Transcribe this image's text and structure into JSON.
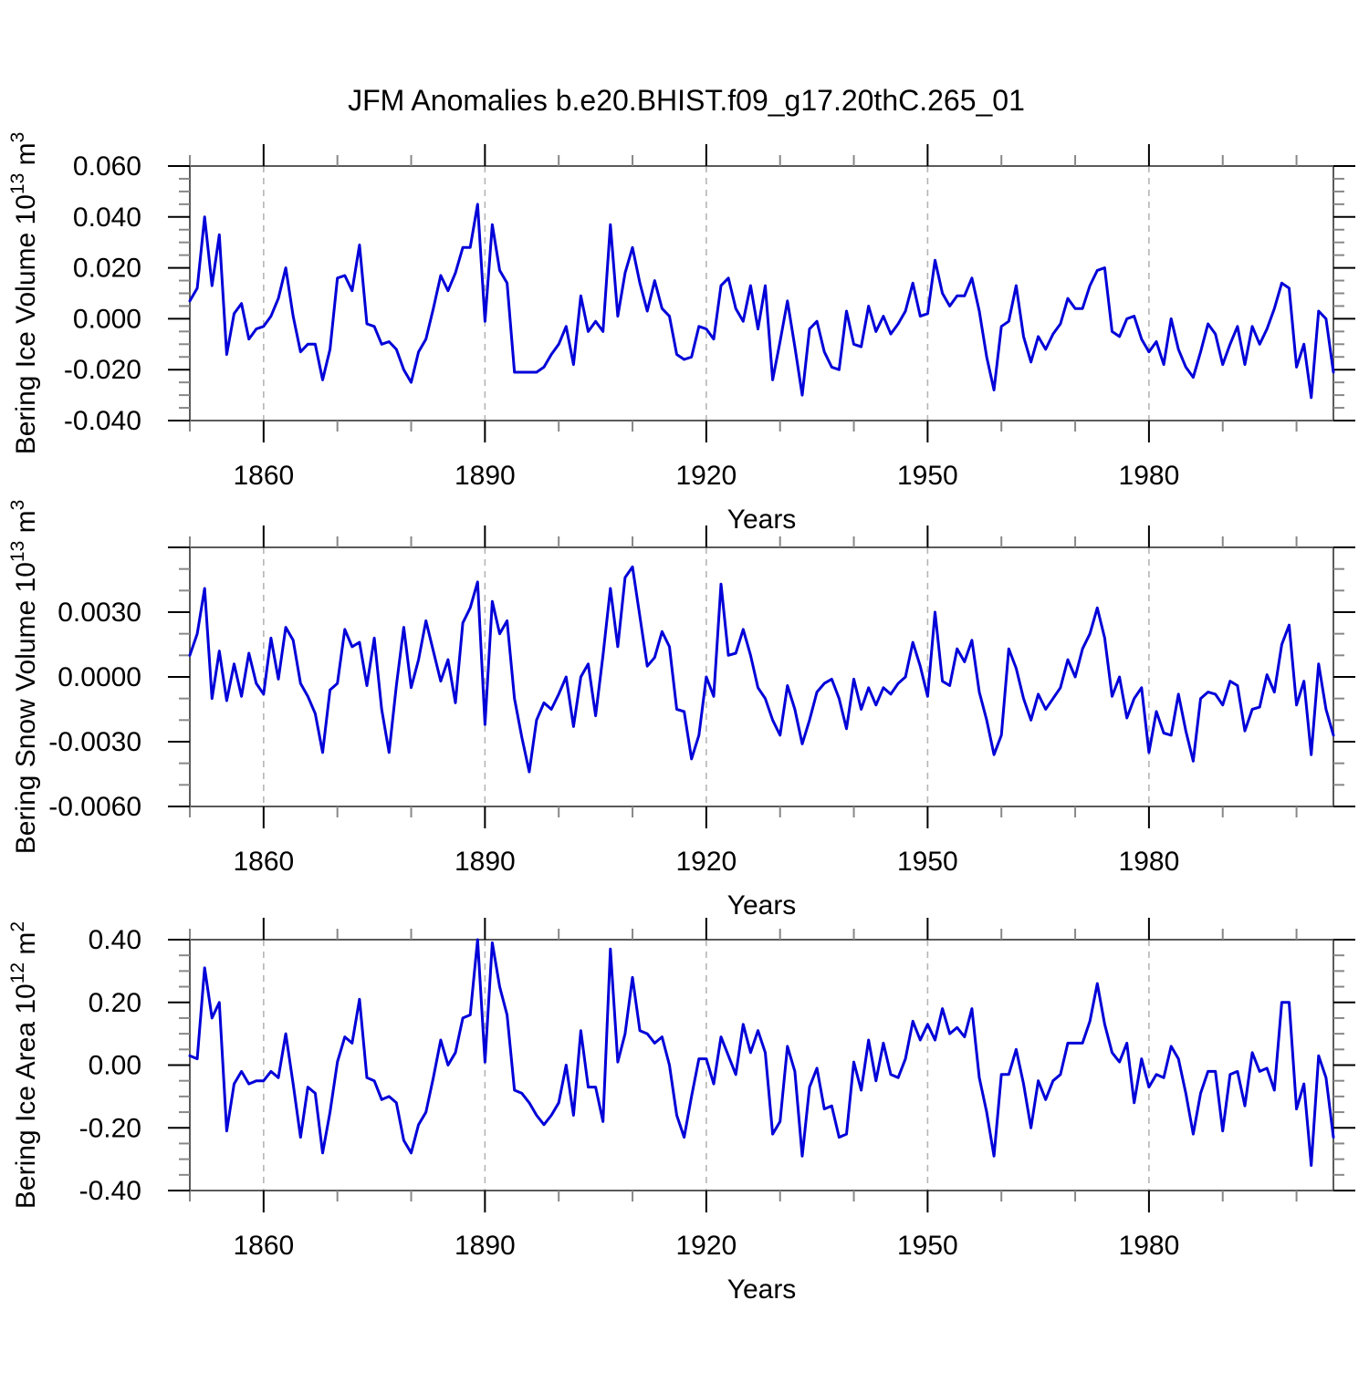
{
  "title": "JFM Anomalies b.e20.BHIST.f09_g17.20thC.265_01",
  "colors": {
    "line": "#0000d8",
    "frame": "#5a5a5a",
    "major_tick": "#000000",
    "minor_tick": "#888888",
    "gridline": "#b5b5b5",
    "text": "#000000"
  },
  "x_axis": {
    "label": "Years",
    "range": [
      1850,
      2005
    ],
    "labeled_ticks": [
      1860,
      1890,
      1920,
      1950,
      1980
    ],
    "minor_step": 10,
    "gridlines": [
      1860,
      1890,
      1920,
      1950,
      1980
    ]
  },
  "years": {
    "start": 1850,
    "end": 2005,
    "step": 1
  },
  "chart_data": [
    {
      "type": "line",
      "name": "bering-ice-volume",
      "ylabel_parts": [
        {
          "t": "Bering Ice Volume 10"
        },
        {
          "t": "13",
          "sup": 1
        },
        {
          "t": " m"
        },
        {
          "t": "3",
          "sup": 1
        }
      ],
      "xlabel": "Years",
      "ylim": [
        -0.04,
        0.06
      ],
      "yminor_step": 0.005,
      "yticks": [
        {
          "value": 0.06,
          "label": "0.060"
        },
        {
          "value": 0.04,
          "label": "0.040"
        },
        {
          "value": 0.02,
          "label": "0.020"
        },
        {
          "value": 0.0,
          "label": "0.000"
        },
        {
          "value": -0.02,
          "label": "-0.020"
        },
        {
          "value": -0.04,
          "label": "-0.040"
        }
      ],
      "values": [
        0.007,
        0.012,
        0.04,
        0.013,
        0.033,
        -0.014,
        0.002,
        0.006,
        -0.008,
        -0.004,
        -0.003,
        0.001,
        0.008,
        0.02,
        0.001,
        -0.013,
        -0.01,
        -0.01,
        -0.024,
        -0.012,
        0.016,
        0.017,
        0.011,
        0.029,
        -0.002,
        -0.003,
        -0.01,
        -0.009,
        -0.012,
        -0.02,
        -0.025,
        -0.013,
        -0.008,
        0.004,
        0.017,
        0.011,
        0.018,
        0.028,
        0.028,
        0.045,
        -0.001,
        0.037,
        0.019,
        0.014,
        -0.021,
        -0.021,
        -0.021,
        -0.021,
        -0.019,
        -0.014,
        -0.01,
        -0.003,
        -0.018,
        0.009,
        -0.005,
        -0.001,
        -0.005,
        0.037,
        0.001,
        0.018,
        0.028,
        0.014,
        0.003,
        0.015,
        0.004,
        0.001,
        -0.014,
        -0.016,
        -0.015,
        -0.003,
        -0.004,
        -0.008,
        0.013,
        0.016,
        0.004,
        -0.001,
        0.013,
        -0.004,
        0.013,
        -0.024,
        -0.009,
        0.007,
        -0.011,
        -0.03,
        -0.004,
        -0.001,
        -0.013,
        -0.019,
        -0.02,
        0.003,
        -0.01,
        -0.011,
        0.005,
        -0.005,
        0.001,
        -0.006,
        -0.002,
        0.003,
        0.014,
        0.001,
        0.002,
        0.023,
        0.01,
        0.005,
        0.009,
        0.009,
        0.016,
        0.003,
        -0.015,
        -0.028,
        -0.003,
        -0.001,
        0.013,
        -0.007,
        -0.017,
        -0.007,
        -0.012,
        -0.006,
        -0.002,
        0.008,
        0.004,
        0.004,
        0.013,
        0.019,
        0.02,
        -0.005,
        -0.007,
        0.0,
        0.001,
        -0.008,
        -0.013,
        -0.009,
        -0.018,
        0.0,
        -0.012,
        -0.019,
        -0.023,
        -0.013,
        -0.002,
        -0.006,
        -0.018,
        -0.01,
        -0.003,
        -0.018,
        -0.003,
        -0.01,
        -0.004,
        0.004,
        0.014,
        0.012,
        -0.019,
        -0.01,
        -0.031,
        0.003,
        0.0,
        -0.021
      ]
    },
    {
      "type": "line",
      "name": "bering-snow-volume",
      "ylabel_parts": [
        {
          "t": "Bering Snow Volume 10"
        },
        {
          "t": "13",
          "sup": 1
        },
        {
          "t": " m"
        },
        {
          "t": "3",
          "sup": 1
        }
      ],
      "xlabel": "Years",
      "ylim": [
        -0.006,
        0.006
      ],
      "yminor_step": 0.001,
      "yticks": [
        {
          "value": 0.006,
          "label": ""
        },
        {
          "value": 0.003,
          "label": "0.0030"
        },
        {
          "value": 0.0,
          "label": "0.0000"
        },
        {
          "value": -0.003,
          "label": "-0.0030"
        },
        {
          "value": -0.006,
          "label": "-0.0060"
        }
      ],
      "values": [
        0.001,
        0.002,
        0.0041,
        -0.001,
        0.0012,
        -0.0011,
        0.0006,
        -0.0009,
        0.0011,
        -0.0003,
        -0.0008,
        0.0018,
        -0.0001,
        0.0023,
        0.0017,
        -0.0003,
        -0.0009,
        -0.0017,
        -0.0035,
        -0.0006,
        -0.0003,
        0.0022,
        0.0014,
        0.0016,
        -0.0004,
        0.0018,
        -0.0015,
        -0.0035,
        -0.0004,
        0.0023,
        -0.0005,
        0.0008,
        0.0026,
        0.0012,
        -0.0002,
        0.0008,
        -0.0012,
        0.0025,
        0.0032,
        0.0044,
        -0.0022,
        0.0035,
        0.002,
        0.0026,
        -0.001,
        -0.0028,
        -0.0044,
        -0.002,
        -0.0012,
        -0.0015,
        -0.0008,
        0.0,
        -0.0023,
        0.0,
        0.0006,
        -0.0018,
        0.001,
        0.0041,
        0.0014,
        0.0046,
        0.0051,
        0.0028,
        0.0005,
        0.0009,
        0.0021,
        0.0014,
        -0.0015,
        -0.0016,
        -0.0038,
        -0.0027,
        0.0,
        -0.0009,
        0.0043,
        0.001,
        0.0011,
        0.0022,
        0.001,
        -0.0005,
        -0.001,
        -0.002,
        -0.0027,
        -0.0004,
        -0.0015,
        -0.0031,
        -0.002,
        -0.0007,
        -0.0003,
        -0.0001,
        -0.001,
        -0.0024,
        -0.0001,
        -0.0015,
        -0.0005,
        -0.0013,
        -0.0005,
        -0.0008,
        -0.0003,
        0.0,
        0.0016,
        0.0005,
        -0.0009,
        0.003,
        -0.0002,
        -0.0004,
        0.0013,
        0.0007,
        0.0017,
        -0.0007,
        -0.002,
        -0.0036,
        -0.0027,
        0.0013,
        0.0004,
        -0.001,
        -0.002,
        -0.0008,
        -0.0015,
        -0.001,
        -0.0005,
        0.0008,
        0.0,
        0.0013,
        0.002,
        0.0032,
        0.0018,
        -0.0009,
        0.0,
        -0.0019,
        -0.001,
        -0.0005,
        -0.0035,
        -0.0016,
        -0.0026,
        -0.0027,
        -0.0008,
        -0.0025,
        -0.0039,
        -0.001,
        -0.0007,
        -0.0008,
        -0.0013,
        -0.0002,
        -0.0004,
        -0.0025,
        -0.0015,
        -0.0014,
        0.0001,
        -0.0007,
        0.0015,
        0.0024,
        -0.0013,
        -0.0002,
        -0.0036,
        0.0006,
        -0.0015,
        -0.0027
      ]
    },
    {
      "type": "line",
      "name": "bering-ice-area",
      "ylabel_parts": [
        {
          "t": "Bering Ice Area 10"
        },
        {
          "t": "12",
          "sup": 1
        },
        {
          "t": " m"
        },
        {
          "t": "2",
          "sup": 1
        }
      ],
      "xlabel": "Years",
      "ylim": [
        -0.4,
        0.4
      ],
      "yminor_step": 0.05,
      "yticks": [
        {
          "value": 0.4,
          "label": "0.40"
        },
        {
          "value": 0.2,
          "label": "0.20"
        },
        {
          "value": 0.0,
          "label": "0.00"
        },
        {
          "value": -0.2,
          "label": "-0.20"
        },
        {
          "value": -0.4,
          "label": "-0.40"
        }
      ],
      "values": [
        0.03,
        0.02,
        0.31,
        0.15,
        0.2,
        -0.21,
        -0.06,
        -0.02,
        -0.06,
        -0.05,
        -0.05,
        -0.02,
        -0.04,
        0.1,
        -0.06,
        -0.23,
        -0.07,
        -0.09,
        -0.28,
        -0.15,
        0.01,
        0.09,
        0.07,
        0.21,
        -0.04,
        -0.05,
        -0.11,
        -0.1,
        -0.12,
        -0.24,
        -0.28,
        -0.19,
        -0.15,
        -0.04,
        0.08,
        0.0,
        0.04,
        0.15,
        0.16,
        0.4,
        0.01,
        0.39,
        0.25,
        0.16,
        -0.08,
        -0.09,
        -0.12,
        -0.16,
        -0.19,
        -0.16,
        -0.12,
        0.0,
        -0.16,
        0.11,
        -0.07,
        -0.07,
        -0.18,
        0.37,
        0.01,
        0.1,
        0.28,
        0.11,
        0.1,
        0.07,
        0.09,
        0.0,
        -0.16,
        -0.23,
        -0.1,
        0.02,
        0.02,
        -0.06,
        0.09,
        0.03,
        -0.03,
        0.13,
        0.04,
        0.11,
        0.04,
        -0.22,
        -0.18,
        0.06,
        -0.02,
        -0.29,
        -0.07,
        -0.01,
        -0.14,
        -0.13,
        -0.23,
        -0.22,
        0.01,
        -0.08,
        0.08,
        -0.05,
        0.07,
        -0.03,
        -0.04,
        0.02,
        0.14,
        0.08,
        0.13,
        0.08,
        0.18,
        0.1,
        0.12,
        0.09,
        0.18,
        -0.04,
        -0.15,
        -0.29,
        -0.03,
        -0.03,
        0.05,
        -0.06,
        -0.2,
        -0.05,
        -0.11,
        -0.05,
        -0.03,
        0.07,
        0.07,
        0.07,
        0.14,
        0.26,
        0.13,
        0.04,
        0.01,
        0.07,
        -0.12,
        0.02,
        -0.07,
        -0.03,
        -0.04,
        0.06,
        0.02,
        -0.09,
        -0.22,
        -0.09,
        -0.02,
        -0.02,
        -0.21,
        -0.03,
        -0.02,
        -0.13,
        0.04,
        -0.02,
        -0.01,
        -0.08,
        0.2,
        0.2,
        -0.14,
        -0.06,
        -0.32,
        0.03,
        -0.04,
        -0.23
      ]
    }
  ]
}
